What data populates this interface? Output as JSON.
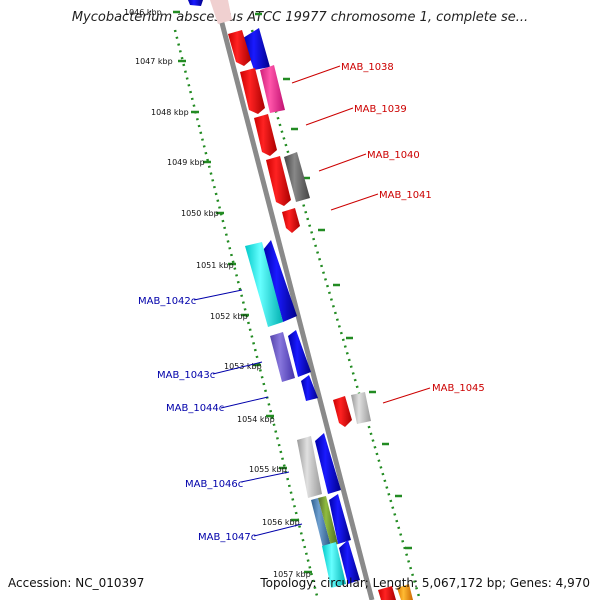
{
  "title": "Mycobacterium abscessus ATCC 19977 chromosome 1, complete se...",
  "accession": "Accession: NC_010397",
  "topology": "Topology: circular; Length: 5,067,172 bp; Genes: 4,970",
  "ticks": [
    "1046 kbp",
    "1047 kbp",
    "1048 kbp",
    "1049 kbp",
    "1050 kbp",
    "1051 kbp",
    "1052 kbp",
    "1053 kbp",
    "1054 kbp",
    "1055 kbp",
    "1056 kbp",
    "1057 kbp"
  ],
  "forward_genes": [
    "MAB_1038",
    "MAB_1039",
    "MAB_1040",
    "MAB_1041",
    "MAB_1045"
  ],
  "reverse_genes": [
    "MAB_1042c",
    "MAB_1043c",
    "MAB_1044c",
    "MAB_1046c",
    "MAB_1047c"
  ],
  "colors": {
    "forward_label": "#cc0000",
    "reverse_label": "#0000aa",
    "backbone": "#888888",
    "dotted_track": "#228b22",
    "red": "#ff0000",
    "blue": "#0000ff",
    "cyan": "#00ffff",
    "magenta": "#ff3399",
    "dark_gray": "#666666",
    "light_gray": "#c0c0c0",
    "purple": "#7766cc",
    "olive": "#6b8e23",
    "steel_blue": "#4682b4",
    "orange": "#ff9900"
  }
}
